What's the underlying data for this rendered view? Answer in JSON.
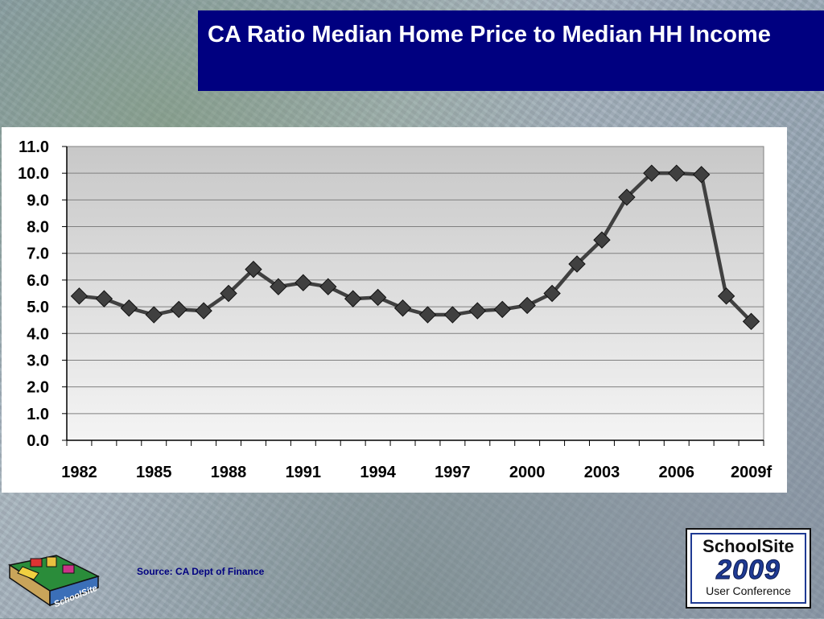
{
  "slide": {
    "title": "CA Ratio Median Home Price to Median HH Income",
    "source": "Source:  CA Dept of Finance"
  },
  "logo_right": {
    "line1": "SchoolSite",
    "line2": "2009",
    "line3": "User Conference"
  },
  "logo_left": {
    "text": "SchoolSite"
  },
  "colors": {
    "title_bg": "#000080",
    "series": "#404040",
    "plot_bg_top": "#c8c8c8",
    "plot_bg_bottom": "#f4f4f4"
  },
  "chart_data": {
    "type": "line",
    "title": "",
    "xlabel": "",
    "ylabel": "",
    "ylim": [
      0,
      11
    ],
    "ytick_labels": [
      "0.0",
      "1.0",
      "2.0",
      "3.0",
      "4.0",
      "5.0",
      "6.0",
      "7.0",
      "8.0",
      "9.0",
      "10.0",
      "11.0"
    ],
    "x": [
      "1982",
      "1983",
      "1984",
      "1985",
      "1986",
      "1987",
      "1988",
      "1989",
      "1990",
      "1991",
      "1992",
      "1993",
      "1994",
      "1995",
      "1996",
      "1997",
      "1998",
      "1999",
      "2000",
      "2001",
      "2002",
      "2003",
      "2004",
      "2005",
      "2006",
      "2007",
      "2008",
      "2009f"
    ],
    "xtick_labels": [
      "1982",
      "1985",
      "1988",
      "1991",
      "1994",
      "1997",
      "2000",
      "2003",
      "2006",
      "2009f"
    ],
    "grid": true,
    "marker": "diamond",
    "series": [
      {
        "values": [
          5.4,
          5.3,
          4.95,
          4.7,
          4.9,
          4.85,
          5.5,
          6.4,
          5.75,
          5.9,
          5.75,
          5.3,
          5.35,
          4.95,
          4.7,
          4.7,
          4.85,
          4.9,
          5.05,
          5.5,
          6.6,
          7.5,
          9.1,
          10.0,
          10.0,
          9.95,
          5.4,
          4.45
        ]
      }
    ]
  }
}
